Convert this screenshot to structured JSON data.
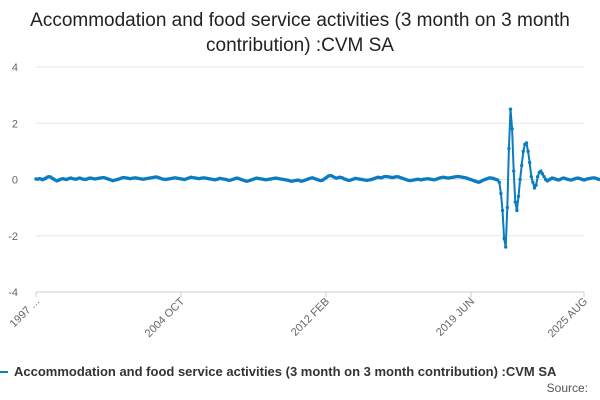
{
  "colors": {
    "series": "#0a7cbf",
    "grid": "#e6e6e6",
    "axis": "#cccccc",
    "tick_text": "#666666"
  },
  "chart_data": {
    "type": "line",
    "title": "Accommodation and food service activities (3 month on 3 month contribution) :CVM SA",
    "xlabel": "",
    "ylabel": "",
    "ylim": [
      -4,
      4
    ],
    "yticks": [
      -4,
      -2,
      0,
      2,
      4
    ],
    "xlim": [
      "1997-01",
      "2025-08"
    ],
    "xtick_labels": [
      "1997 ...",
      "2004 OCT",
      "2012 FEB",
      "2019 JUN",
      "2025 AUG"
    ],
    "grid": true,
    "legend_position": "bottom",
    "markers": true,
    "series": [
      {
        "name": "Accommodation and food service activities (3 month on 3 month contribution) :CVM SA",
        "x_start": "1997-01",
        "frequency": "monthly",
        "values": [
          0.02,
          0.01,
          0.03,
          0.02,
          -0.01,
          0.02,
          0.04,
          0.08,
          0.1,
          0.09,
          0.05,
          0.02,
          -0.02,
          -0.05,
          -0.03,
          0.0,
          0.02,
          0.03,
          0.01,
          0.0,
          0.02,
          0.04,
          0.05,
          0.03,
          0.02,
          0.01,
          0.03,
          0.05,
          0.04,
          0.02,
          0.01,
          0.0,
          0.02,
          0.04,
          0.05,
          0.04,
          0.03,
          0.02,
          0.03,
          0.04,
          0.05,
          0.06,
          0.07,
          0.06,
          0.04,
          0.02,
          0.0,
          -0.02,
          -0.04,
          -0.03,
          -0.01,
          0.0,
          0.02,
          0.04,
          0.06,
          0.07,
          0.06,
          0.05,
          0.04,
          0.03,
          0.04,
          0.05,
          0.06,
          0.05,
          0.04,
          0.03,
          0.02,
          0.01,
          0.02,
          0.03,
          0.04,
          0.05,
          0.06,
          0.07,
          0.08,
          0.09,
          0.08,
          0.06,
          0.04,
          0.02,
          0.01,
          0.0,
          0.01,
          0.02,
          0.03,
          0.04,
          0.05,
          0.06,
          0.05,
          0.04,
          0.03,
          0.02,
          0.01,
          0.0,
          0.02,
          0.04,
          0.06,
          0.08,
          0.07,
          0.06,
          0.05,
          0.04,
          0.03,
          0.04,
          0.05,
          0.06,
          0.05,
          0.04,
          0.03,
          0.02,
          0.01,
          0.0,
          -0.01,
          0.0,
          0.02,
          0.04,
          0.03,
          0.02,
          0.01,
          0.0,
          -0.02,
          -0.03,
          -0.02,
          0.0,
          0.02,
          0.04,
          0.05,
          0.03,
          0.01,
          -0.01,
          -0.03,
          -0.05,
          -0.06,
          -0.05,
          -0.03,
          -0.01,
          0.01,
          0.03,
          0.05,
          0.04,
          0.03,
          0.02,
          0.01,
          0.0,
          -0.01,
          0.0,
          0.01,
          0.02,
          0.03,
          0.04,
          0.05,
          0.04,
          0.03,
          0.02,
          0.01,
          0.0,
          -0.01,
          -0.02,
          -0.03,
          -0.05,
          -0.06,
          -0.05,
          -0.04,
          -0.03,
          -0.02,
          -0.04,
          -0.06,
          -0.05,
          -0.03,
          -0.01,
          0.01,
          0.03,
          0.05,
          0.06,
          0.04,
          0.02,
          0.0,
          -0.02,
          -0.04,
          -0.03,
          0.0,
          0.04,
          0.08,
          0.12,
          0.14,
          0.13,
          0.1,
          0.07,
          0.05,
          0.06,
          0.08,
          0.07,
          0.05,
          0.02,
          0.0,
          -0.02,
          -0.03,
          -0.02,
          0.0,
          0.02,
          0.04,
          0.03,
          0.02,
          0.01,
          0.0,
          -0.01,
          -0.02,
          -0.03,
          -0.02,
          -0.01,
          0.0,
          0.02,
          0.04,
          0.06,
          0.08,
          0.07,
          0.06,
          0.08,
          0.1,
          0.11,
          0.1,
          0.09,
          0.08,
          0.07,
          0.08,
          0.09,
          0.1,
          0.09,
          0.07,
          0.05,
          0.03,
          0.01,
          -0.01,
          -0.03,
          -0.04,
          -0.03,
          -0.02,
          -0.01,
          0.0,
          0.01,
          0.0,
          -0.01,
          0.0,
          0.01,
          0.02,
          0.03,
          0.02,
          0.01,
          0.0,
          -0.01,
          0.0,
          0.02,
          0.04,
          0.06,
          0.07,
          0.08,
          0.07,
          0.06,
          0.05,
          0.06,
          0.07,
          0.08,
          0.09,
          0.1,
          0.11,
          0.1,
          0.09,
          0.08,
          0.07,
          0.06,
          0.04,
          0.02,
          0.0,
          -0.02,
          -0.04,
          -0.06,
          -0.08,
          -0.1,
          -0.08,
          -0.05,
          -0.02,
          0.0,
          0.02,
          0.04,
          0.06,
          0.05,
          0.04,
          0.02,
          0.0,
          -0.02,
          -0.1,
          -0.5,
          -1.1,
          -2.1,
          -2.4,
          -1.0,
          1.1,
          2.5,
          1.8,
          0.3,
          -0.8,
          -1.1,
          -0.6,
          0.0,
          0.5,
          1.0,
          1.25,
          1.3,
          1.0,
          0.6,
          0.1,
          -0.1,
          -0.3,
          -0.2,
          0.1,
          0.25,
          0.3,
          0.2,
          0.1,
          0.0,
          -0.05,
          -0.02,
          0.02,
          0.05,
          0.04,
          0.02,
          0.0,
          -0.02,
          0.0,
          0.03,
          0.05,
          0.04,
          0.02,
          0.0,
          -0.01,
          -0.02,
          0.0,
          0.02,
          0.04,
          0.05,
          0.04,
          0.02,
          0.0,
          -0.02,
          0.0,
          0.02,
          0.03,
          0.04,
          0.05,
          0.06,
          0.05,
          0.03,
          0.01,
          0.0,
          0.01,
          0.02,
          0.03,
          0.04,
          0.05,
          0.06,
          0.05,
          0.04,
          0.03,
          0.02,
          0.01,
          0.02,
          0.03,
          0.02,
          0.01,
          0.0
        ]
      }
    ]
  },
  "legend": {
    "label": "Accommodation and food service activities (3 month on 3 month contribution) :CVM SA"
  },
  "source_label": "Source:"
}
